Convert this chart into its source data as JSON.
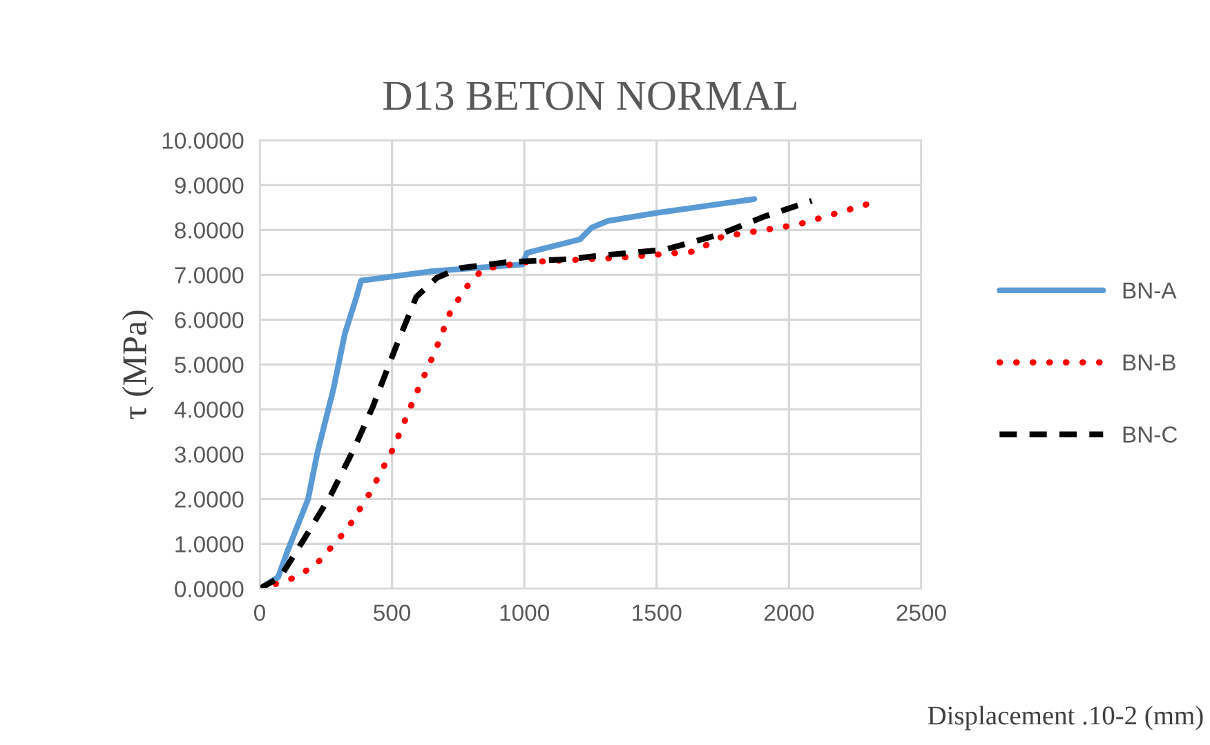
{
  "chart_data": {
    "type": "line",
    "title": "D13 BETON NORMAL",
    "xlabel": "Displacement .10-2 (mm)",
    "ylabel": "τ (MPa)",
    "xlim": [
      0,
      2500
    ],
    "xticks": [
      0,
      500,
      1000,
      1500,
      2000,
      2500
    ],
    "ylim": [
      0,
      10
    ],
    "yticks": [
      {
        "value": 0,
        "label": "0.0000"
      },
      {
        "value": 1,
        "label": "1.0000"
      },
      {
        "value": 2,
        "label": "2.0000"
      },
      {
        "value": 3,
        "label": "3.0000"
      },
      {
        "value": 4,
        "label": "4.0000"
      },
      {
        "value": 5,
        "label": "5.0000"
      },
      {
        "value": 6,
        "label": "6.0000"
      },
      {
        "value": 7,
        "label": "7.0000"
      },
      {
        "value": 8,
        "label": "8.0000"
      },
      {
        "value": 9,
        "label": "9.0000"
      },
      {
        "value": 10,
        "label": "10.0000"
      }
    ],
    "grid": true,
    "legend": "right",
    "marker": "none",
    "series": [
      {
        "name": "BN-A",
        "color": "#5b9bd5",
        "line_style": "solid",
        "x": [
          0,
          70,
          104,
          183,
          218,
          279,
          322,
          366,
          383,
          653,
          993,
          1010,
          1210,
          1254,
          1315,
          1500,
          1869
        ],
        "values": [
          0,
          0.26,
          0.82,
          2.0,
          3.03,
          4.46,
          5.69,
          6.51,
          6.87,
          7.08,
          7.23,
          7.49,
          7.79,
          8.05,
          8.2,
          8.38,
          8.69
        ]
      },
      {
        "name": "BN-B",
        "color": "#ff0000",
        "line_style": "dotted",
        "x": [
          0,
          113,
          209,
          331,
          418,
          505,
          592,
          662,
          723,
          793,
          845,
          1002,
          1176,
          1356,
          1643,
          1747,
          2034,
          2311
        ],
        "values": [
          0,
          0.2,
          0.51,
          1.33,
          2.15,
          3.13,
          4.36,
          5.28,
          6.21,
          6.82,
          7.13,
          7.28,
          7.33,
          7.38,
          7.52,
          7.85,
          8.12,
          8.6
        ]
      },
      {
        "name": "BN-C",
        "color": "#000000",
        "line_style": "dashed",
        "x": [
          0,
          78,
          165,
          270,
          357,
          427,
          514,
          592,
          671,
          758,
          932,
          1176,
          1269,
          1530,
          1738,
          1912,
          2086
        ],
        "values": [
          0,
          0.26,
          1.08,
          2.1,
          3.13,
          4.05,
          5.38,
          6.51,
          6.94,
          7.15,
          7.28,
          7.35,
          7.42,
          7.56,
          7.9,
          8.31,
          8.65
        ]
      }
    ]
  }
}
